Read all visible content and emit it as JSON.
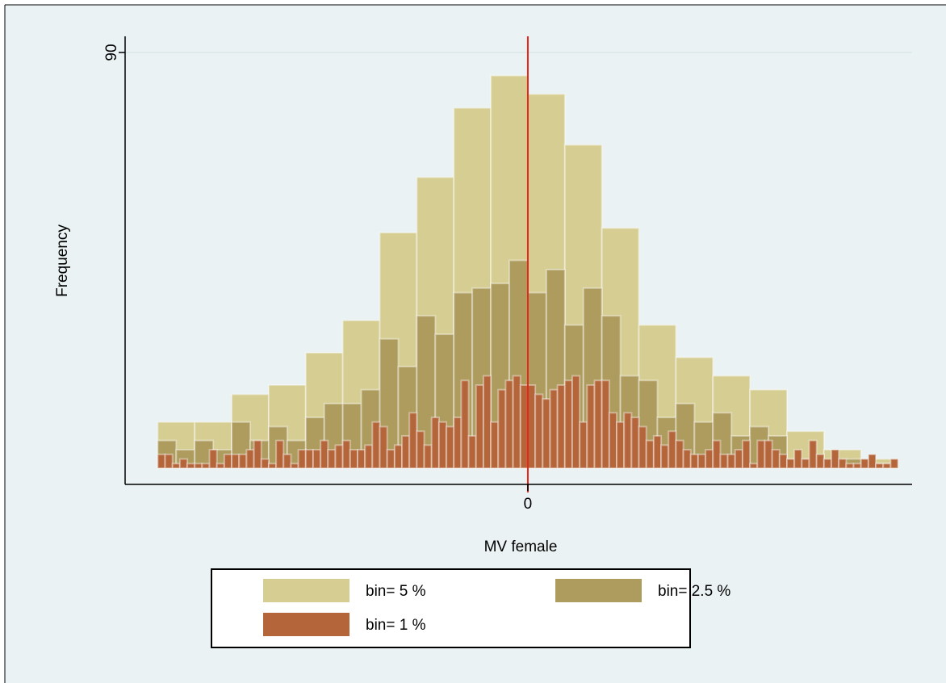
{
  "chart_data": {
    "type": "histogram",
    "x_label": "MV female",
    "y_label": "Frequency",
    "xlim": [
      -54.4,
      51.9
    ],
    "ylim": [
      -3.5,
      93.5
    ],
    "xticks": [
      0
    ],
    "yticks": [
      90
    ],
    "grid": true,
    "reference_line": {
      "x": 0,
      "color": "#e8261c"
    },
    "legend": "bottom",
    "series": [
      {
        "name": "bin= 5 %",
        "color": "#d6cd92",
        "bins": [
          -50,
          -45,
          -40,
          -35,
          -30,
          -25,
          -20,
          -15,
          -10,
          -5,
          0,
          5,
          10,
          15,
          20,
          25,
          30,
          35,
          40,
          45,
          50
        ],
        "values": [
          10,
          10,
          16,
          18,
          25,
          32,
          51,
          63,
          78,
          85,
          81,
          70,
          52,
          31,
          24,
          20,
          17,
          8,
          4,
          2
        ]
      },
      {
        "name": "bin= 2.5 %",
        "color": "#ad9c5e",
        "bins": [
          -50,
          -47.5,
          -45,
          -42.5,
          -40,
          -37.5,
          -35,
          -32.5,
          -30,
          -27.5,
          -25,
          -22.5,
          -20,
          -17.5,
          -15,
          -12.5,
          -10,
          -7.5,
          -5,
          -2.5,
          0,
          2.5,
          5,
          7.5,
          10,
          12.5,
          15,
          17.5,
          20,
          22.5,
          25,
          27.5,
          30,
          32.5,
          35,
          37.5,
          40,
          42.5,
          45,
          47.5,
          50
        ],
        "values": [
          6,
          4,
          6,
          4,
          10,
          6,
          9,
          6,
          11,
          14,
          14,
          17,
          28,
          22,
          33,
          29,
          38,
          39,
          40,
          45,
          38,
          43,
          31,
          39,
          33,
          20,
          19,
          11,
          14,
          10,
          12,
          7,
          9,
          7,
          2,
          2,
          1,
          2,
          1,
          1
        ]
      },
      {
        "name": "bin= 1 %",
        "color": "#b5653a",
        "bins": [
          -50,
          -49,
          -48,
          -47,
          -46,
          -45,
          -44,
          -43,
          -42,
          -41,
          -40,
          -39,
          -38,
          -37,
          -36,
          -35,
          -34,
          -33,
          -32,
          -31,
          -30,
          -29,
          -28,
          -27,
          -26,
          -25,
          -24,
          -23,
          -22,
          -21,
          -20,
          -19,
          -18,
          -17,
          -16,
          -15,
          -14,
          -13,
          -12,
          -11,
          -10,
          -9,
          -8,
          -7,
          -6,
          -5,
          -4,
          -3,
          -2,
          -1,
          0,
          1,
          2,
          3,
          4,
          5,
          6,
          7,
          8,
          9,
          10,
          11,
          12,
          13,
          14,
          15,
          16,
          17,
          18,
          19,
          20,
          21,
          22,
          23,
          24,
          25,
          26,
          27,
          28,
          29,
          30,
          31,
          32,
          33,
          34,
          35,
          36,
          37,
          38,
          39,
          40,
          41,
          42,
          43,
          44,
          45,
          46,
          47,
          48,
          49,
          50
        ],
        "values": [
          3,
          3,
          1,
          2,
          1,
          1,
          1,
          4,
          1,
          3,
          3,
          3,
          4,
          6,
          2,
          1,
          6,
          3,
          1,
          4,
          4,
          4,
          6,
          4,
          5,
          6,
          4,
          4,
          5,
          10,
          9,
          4,
          5,
          7,
          12,
          8,
          5,
          11,
          10,
          9,
          11,
          19,
          7,
          18,
          20,
          10,
          17,
          19,
          20,
          18,
          18,
          16,
          15,
          17,
          18,
          19,
          20,
          10,
          18,
          19,
          19,
          12,
          10,
          12,
          11,
          9,
          6,
          7,
          5,
          8,
          6,
          4,
          3,
          3,
          4,
          6,
          3,
          3,
          4,
          6,
          1,
          6,
          6,
          4,
          3,
          2,
          4,
          2,
          6,
          3,
          2,
          4,
          2,
          1,
          1,
          2,
          3,
          1,
          1,
          2
        ]
      }
    ]
  }
}
